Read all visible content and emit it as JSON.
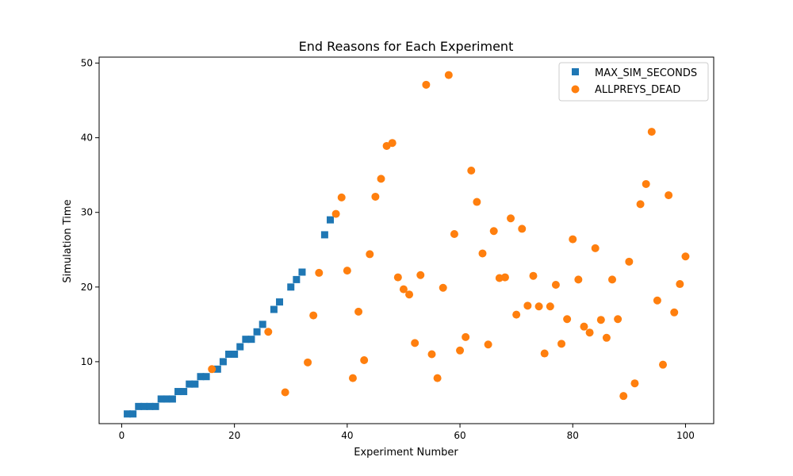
{
  "chart_data": {
    "type": "scatter",
    "title": "End Reasons for Each Experiment",
    "xlabel": "Experiment Number",
    "ylabel": "Simulation Time",
    "xlim": [
      -4,
      105
    ],
    "ylim": [
      1.7,
      50.8
    ],
    "xticks": [
      0,
      20,
      40,
      60,
      80,
      100
    ],
    "yticks": [
      10,
      20,
      30,
      40,
      50
    ],
    "grid": false,
    "legend_position": "upper right",
    "series": [
      {
        "name": "MAX_SIM_SECONDS",
        "marker": "square",
        "color": "#1f77b4",
        "x": [
          1,
          2,
          3,
          4,
          5,
          6,
          7,
          8,
          9,
          10,
          11,
          12,
          13,
          14,
          15,
          17,
          18,
          19,
          20,
          21,
          22,
          23,
          24,
          25,
          27,
          28,
          30,
          31,
          32,
          36,
          37
        ],
        "y": [
          3,
          3,
          4,
          4,
          4,
          4,
          5,
          5,
          5,
          6,
          6,
          7,
          7,
          8,
          8,
          9,
          10,
          11,
          11,
          12,
          13,
          13,
          14,
          15,
          17,
          18,
          20,
          21,
          22,
          27,
          29
        ]
      },
      {
        "name": "ALLPREYS_DEAD",
        "marker": "circle",
        "color": "#ff7f0e",
        "x": [
          16,
          26,
          29,
          33,
          34,
          35,
          38,
          39,
          40,
          41,
          42,
          43,
          44,
          45,
          46,
          47,
          48,
          49,
          50,
          51,
          52,
          53,
          54,
          55,
          56,
          57,
          58,
          59,
          60,
          61,
          62,
          63,
          64,
          65,
          66,
          67,
          68,
          69,
          70,
          71,
          72,
          73,
          74,
          75,
          76,
          77,
          78,
          79,
          80,
          81,
          82,
          83,
          84,
          85,
          86,
          87,
          88,
          89,
          90,
          91,
          92,
          93,
          94,
          95,
          96,
          97,
          98,
          99,
          100
        ],
        "y": [
          9.0,
          14.0,
          5.9,
          9.9,
          16.2,
          21.9,
          29.8,
          32.0,
          22.2,
          7.8,
          16.7,
          10.2,
          24.4,
          32.1,
          34.5,
          38.9,
          39.3,
          21.3,
          19.7,
          19.0,
          12.5,
          21.6,
          47.1,
          11.0,
          7.8,
          19.9,
          48.4,
          27.1,
          11.5,
          13.3,
          35.6,
          31.4,
          24.5,
          12.3,
          27.5,
          21.2,
          21.3,
          29.2,
          16.3,
          27.8,
          17.5,
          21.5,
          17.4,
          11.1,
          17.4,
          20.3,
          12.4,
          15.7,
          26.4,
          21.0,
          14.7,
          13.9,
          25.2,
          15.6,
          13.2,
          21.0,
          15.7,
          5.4,
          23.4,
          7.1,
          31.1,
          33.8,
          40.8,
          18.2,
          9.6,
          32.3,
          16.6,
          20.4,
          24.1
        ]
      }
    ]
  }
}
